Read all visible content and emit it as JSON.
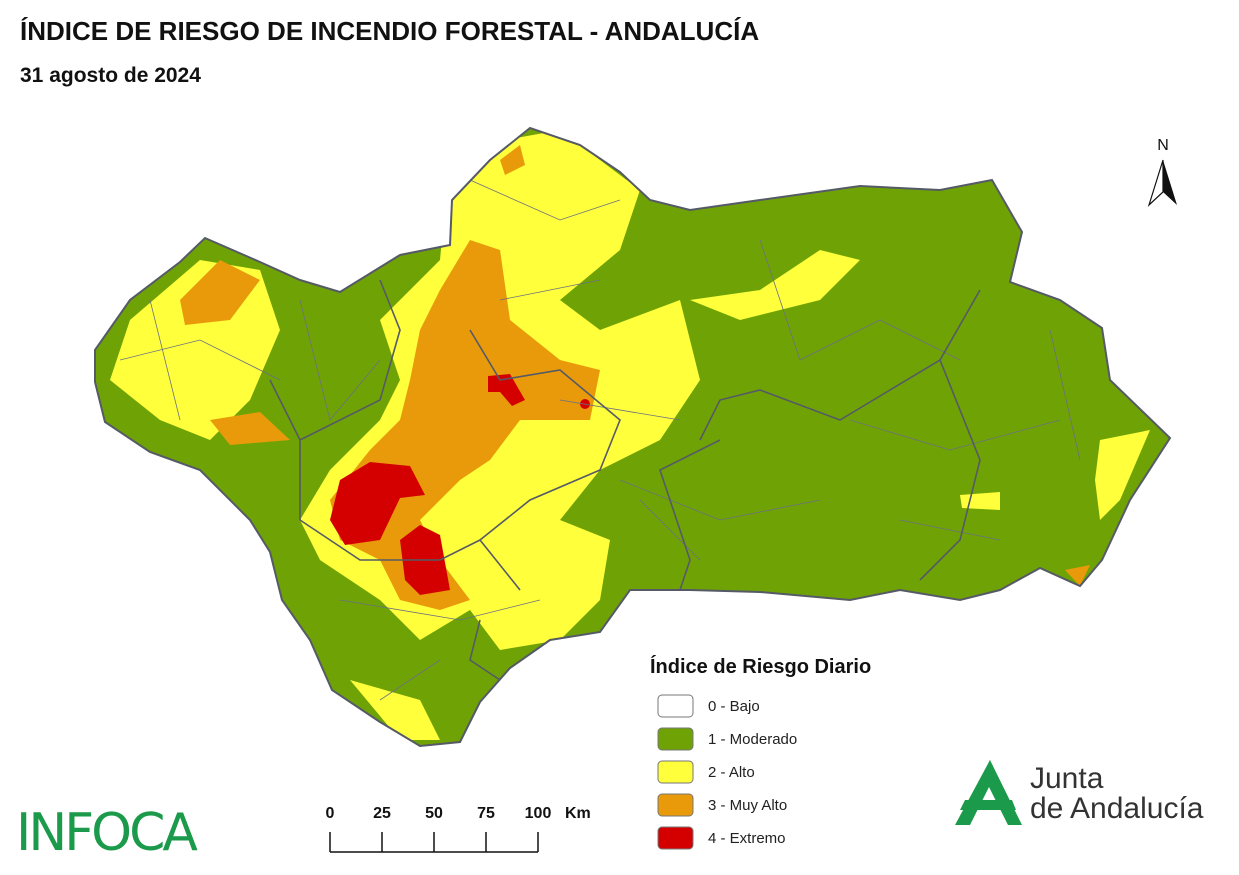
{
  "header": {
    "title": "ÍNDICE DE RIESGO DE INCENDIO FORESTAL - ANDALUCÍA",
    "subtitle": "31 agosto de 2024"
  },
  "north_arrow": "N",
  "legend": {
    "title": "Índice de Riesgo Diario",
    "items": [
      {
        "label": "0 - Bajo",
        "color": "#ffffff"
      },
      {
        "label": "1 - Moderado",
        "color": "#6fa305"
      },
      {
        "label": "2 - Alto",
        "color": "#ffff3c"
      },
      {
        "label": "3 - Muy Alto",
        "color": "#e89a0a"
      },
      {
        "label": "4 - Extremo",
        "color": "#d40000"
      }
    ]
  },
  "scale_bar": {
    "ticks": [
      0,
      25,
      50,
      75,
      100
    ],
    "unit": "Km"
  },
  "logos": {
    "infoca": "INFOCA",
    "junta": [
      "Junta",
      "de Andalucía"
    ]
  }
}
